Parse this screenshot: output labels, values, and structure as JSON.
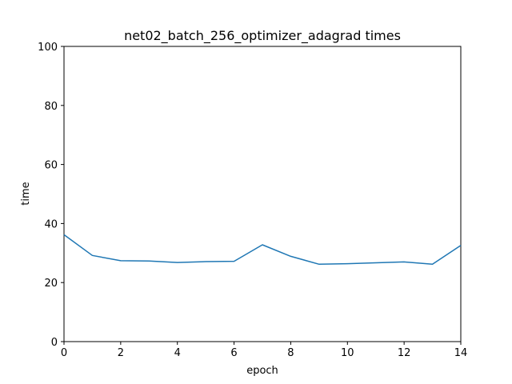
{
  "chart_data": {
    "type": "line",
    "title": "net02_batch_256_optimizer_adagrad times",
    "xlabel": "epoch",
    "ylabel": "time",
    "xlim": [
      0,
      14
    ],
    "ylim": [
      0,
      100
    ],
    "xticks": [
      0,
      2,
      4,
      6,
      8,
      10,
      12,
      14
    ],
    "yticks": [
      0,
      20,
      40,
      60,
      80,
      100
    ],
    "grid": false,
    "series": [
      {
        "color": "#1f77b4",
        "x": [
          0,
          1,
          2,
          3,
          4,
          5,
          6,
          7,
          8,
          9,
          10,
          11,
          12,
          13,
          14
        ],
        "y": [
          36.2,
          29.2,
          27.4,
          27.3,
          26.8,
          27.1,
          27.2,
          32.8,
          28.9,
          26.2,
          26.4,
          26.7,
          27.0,
          26.2,
          32.6
        ]
      }
    ]
  }
}
